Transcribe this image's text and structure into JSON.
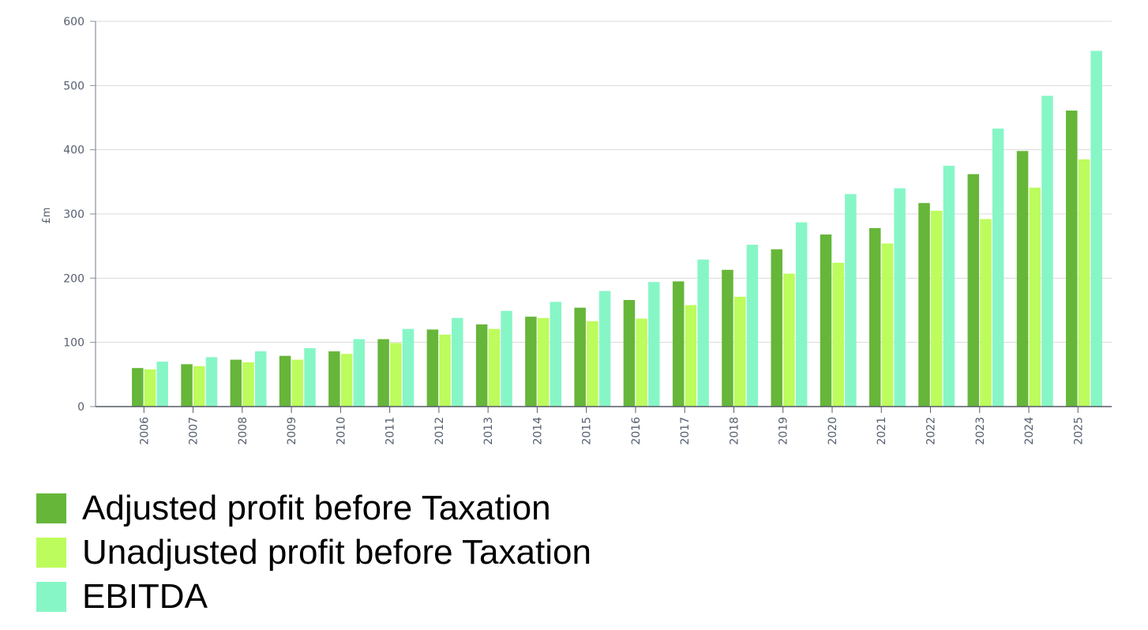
{
  "chart_data": {
    "type": "bar",
    "title": "",
    "xlabel": "",
    "ylabel": "£m",
    "ylim": [
      0,
      600
    ],
    "yticks": [
      0,
      100,
      200,
      300,
      400,
      500,
      600
    ],
    "grid": true,
    "legend_position": "bottom-left",
    "categories": [
      "2006",
      "2007",
      "2008",
      "2009",
      "2010",
      "2011",
      "2012",
      "2013",
      "2014",
      "2015",
      "2016",
      "2017",
      "2018",
      "2019",
      "2020",
      "2021",
      "2022",
      "2023",
      "2024",
      "2025"
    ],
    "series": [
      {
        "name": "Adjusted profit before Taxation",
        "color": "#66b63a",
        "values": [
          60,
          66,
          73,
          79,
          86,
          105,
          120,
          128,
          140,
          154,
          166,
          195,
          213,
          245,
          268,
          278,
          317,
          362,
          398,
          461
        ]
      },
      {
        "name": "Unadjusted profit before Taxation",
        "color": "#bcfc5c",
        "values": [
          58,
          63,
          69,
          73,
          82,
          99,
          112,
          121,
          138,
          133,
          137,
          158,
          171,
          207,
          224,
          254,
          305,
          292,
          341,
          385
        ]
      },
      {
        "name": "EBITDA",
        "color": "#87f6c6",
        "values": [
          70,
          77,
          86,
          91,
          105,
          121,
          138,
          149,
          163,
          180,
          194,
          229,
          252,
          287,
          331,
          340,
          375,
          433,
          484,
          554
        ]
      }
    ]
  }
}
